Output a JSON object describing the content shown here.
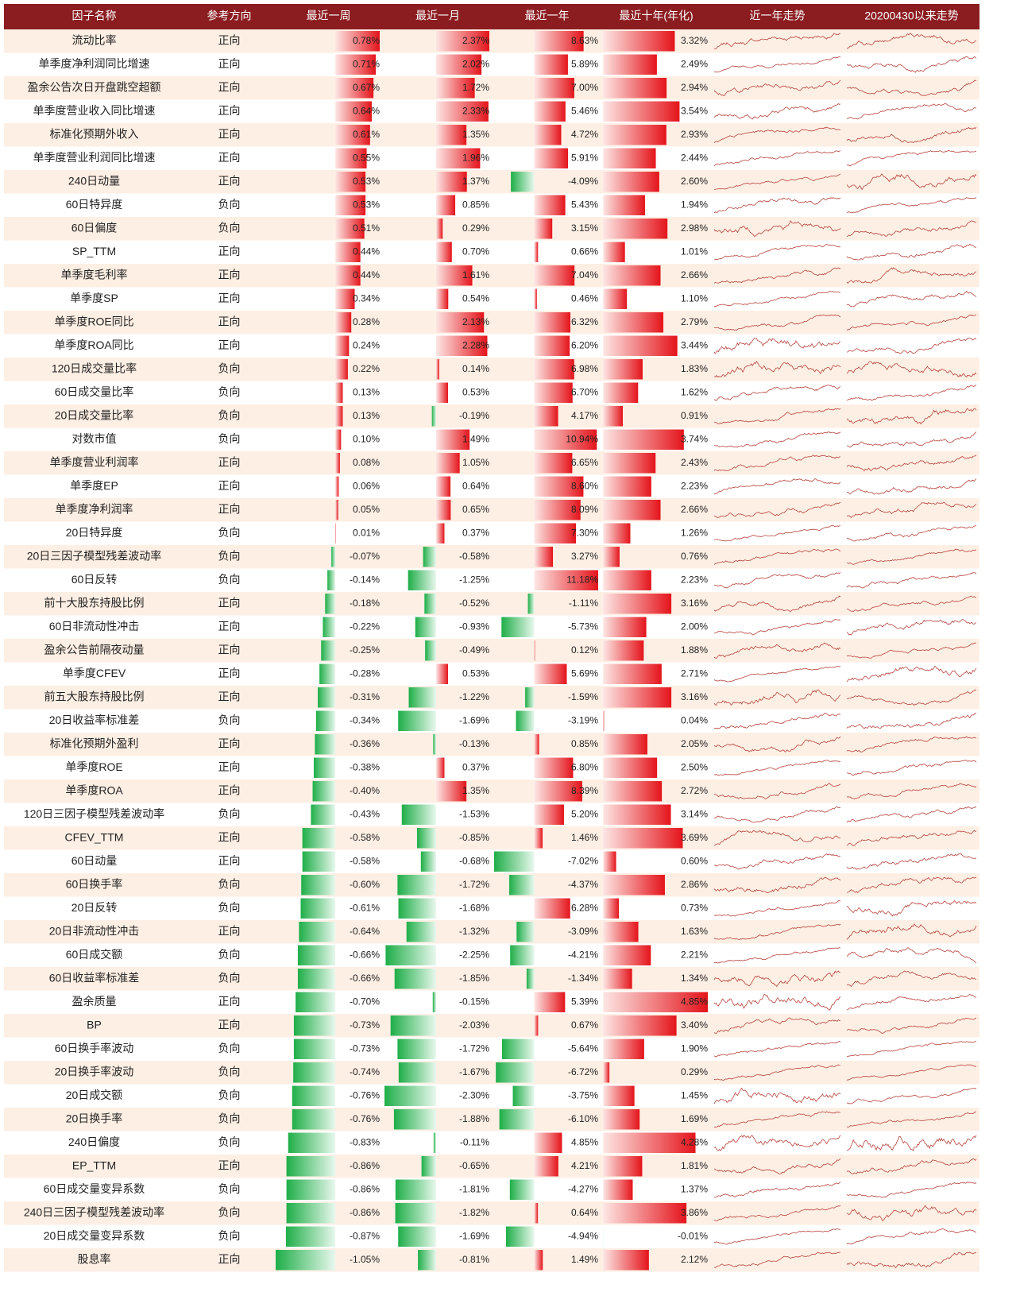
{
  "table": {
    "columns": [
      "因子名称",
      "参考方向",
      "最近一周",
      "最近一月",
      "最近一年",
      "最近十年(年化)",
      "近一年走势",
      "20200430以来走势"
    ],
    "rows": [
      {
        "factor": "流动比率",
        "direction": "正向",
        "values": [
          0.78,
          2.37,
          8.63,
          3.32
        ],
        "value_labels": [
          "0.78%",
          "2.37%",
          "8.63%",
          "3.32%"
        ]
      },
      {
        "factor": "单季度净利润同比增速",
        "direction": "正向",
        "values": [
          0.71,
          2.02,
          5.89,
          2.49
        ],
        "value_labels": [
          "0.71%",
          "2.02%",
          "5.89%",
          "2.49%"
        ]
      },
      {
        "factor": "盈余公告次日开盘跳空超额",
        "direction": "正向",
        "values": [
          0.67,
          1.72,
          7.0,
          2.94
        ],
        "value_labels": [
          "0.67%",
          "1.72%",
          "7.00%",
          "2.94%"
        ]
      },
      {
        "factor": "单季度营业收入同比增速",
        "direction": "正向",
        "values": [
          0.64,
          2.33,
          5.46,
          3.54
        ],
        "value_labels": [
          "0.64%",
          "2.33%",
          "5.46%",
          "3.54%"
        ]
      },
      {
        "factor": "标准化预期外收入",
        "direction": "正向",
        "values": [
          0.61,
          1.35,
          4.72,
          2.93
        ],
        "value_labels": [
          "0.61%",
          "1.35%",
          "4.72%",
          "2.93%"
        ]
      },
      {
        "factor": "单季度营业利润同比增速",
        "direction": "正向",
        "values": [
          0.55,
          1.96,
          5.91,
          2.44
        ],
        "value_labels": [
          "0.55%",
          "1.96%",
          "5.91%",
          "2.44%"
        ]
      },
      {
        "factor": "240日动量",
        "direction": "正向",
        "values": [
          0.53,
          1.37,
          -4.09,
          2.6
        ],
        "value_labels": [
          "0.53%",
          "1.37%",
          "-4.09%",
          "2.60%"
        ]
      },
      {
        "factor": "60日特异度",
        "direction": "负向",
        "values": [
          0.53,
          0.85,
          5.43,
          1.94
        ],
        "value_labels": [
          "0.53%",
          "0.85%",
          "5.43%",
          "1.94%"
        ]
      },
      {
        "factor": "60日偏度",
        "direction": "负向",
        "values": [
          0.51,
          0.29,
          3.15,
          2.98
        ],
        "value_labels": [
          "0.51%",
          "0.29%",
          "3.15%",
          "2.98%"
        ]
      },
      {
        "factor": "SP_TTM",
        "direction": "正向",
        "values": [
          0.44,
          0.7,
          0.66,
          1.01
        ],
        "value_labels": [
          "0.44%",
          "0.70%",
          "0.66%",
          "1.01%"
        ]
      },
      {
        "factor": "单季度毛利率",
        "direction": "正向",
        "values": [
          0.44,
          1.61,
          7.04,
          2.66
        ],
        "value_labels": [
          "0.44%",
          "1.61%",
          "7.04%",
          "2.66%"
        ]
      },
      {
        "factor": "单季度SP",
        "direction": "正向",
        "values": [
          0.34,
          0.54,
          0.46,
          1.1
        ],
        "value_labels": [
          "0.34%",
          "0.54%",
          "0.46%",
          "1.10%"
        ]
      },
      {
        "factor": "单季度ROE同比",
        "direction": "正向",
        "values": [
          0.28,
          2.13,
          6.32,
          2.79
        ],
        "value_labels": [
          "0.28%",
          "2.13%",
          "6.32%",
          "2.79%"
        ]
      },
      {
        "factor": "单季度ROA同比",
        "direction": "正向",
        "values": [
          0.24,
          2.28,
          6.2,
          3.44
        ],
        "value_labels": [
          "0.24%",
          "2.28%",
          "6.20%",
          "3.44%"
        ]
      },
      {
        "factor": "120日成交量比率",
        "direction": "负向",
        "values": [
          0.22,
          0.14,
          6.98,
          1.83
        ],
        "value_labels": [
          "0.22%",
          "0.14%",
          "6.98%",
          "1.83%"
        ]
      },
      {
        "factor": "60日成交量比率",
        "direction": "负向",
        "values": [
          0.13,
          0.53,
          6.7,
          1.62
        ],
        "value_labels": [
          "0.13%",
          "0.53%",
          "6.70%",
          "1.62%"
        ]
      },
      {
        "factor": "20日成交量比率",
        "direction": "负向",
        "values": [
          0.13,
          -0.19,
          4.17,
          0.91
        ],
        "value_labels": [
          "0.13%",
          "-0.19%",
          "4.17%",
          "0.91%"
        ]
      },
      {
        "factor": "对数市值",
        "direction": "负向",
        "values": [
          0.1,
          1.49,
          10.94,
          3.74
        ],
        "value_labels": [
          "0.10%",
          "1.49%",
          "10.94%",
          "3.74%"
        ]
      },
      {
        "factor": "单季度营业利润率",
        "direction": "正向",
        "values": [
          0.08,
          1.05,
          6.65,
          2.43
        ],
        "value_labels": [
          "0.08%",
          "1.05%",
          "6.65%",
          "2.43%"
        ]
      },
      {
        "factor": "单季度EP",
        "direction": "正向",
        "values": [
          0.06,
          0.64,
          8.6,
          2.23
        ],
        "value_labels": [
          "0.06%",
          "0.64%",
          "8.60%",
          "2.23%"
        ]
      },
      {
        "factor": "单季度净利润率",
        "direction": "正向",
        "values": [
          0.05,
          0.65,
          8.09,
          2.66
        ],
        "value_labels": [
          "0.05%",
          "0.65%",
          "8.09%",
          "2.66%"
        ]
      },
      {
        "factor": "20日特异度",
        "direction": "负向",
        "values": [
          0.01,
          0.37,
          7.3,
          1.26
        ],
        "value_labels": [
          "0.01%",
          "0.37%",
          "7.30%",
          "1.26%"
        ]
      },
      {
        "factor": "20日三因子模型残差波动率",
        "direction": "负向",
        "values": [
          -0.07,
          -0.58,
          3.27,
          0.76
        ],
        "value_labels": [
          "-0.07%",
          "-0.58%",
          "3.27%",
          "0.76%"
        ]
      },
      {
        "factor": "60日反转",
        "direction": "负向",
        "values": [
          -0.14,
          -1.25,
          11.18,
          2.23
        ],
        "value_labels": [
          "-0.14%",
          "-1.25%",
          "11.18%",
          "2.23%"
        ]
      },
      {
        "factor": "前十大股东持股比例",
        "direction": "正向",
        "values": [
          -0.18,
          -0.52,
          -1.11,
          3.16
        ],
        "value_labels": [
          "-0.18%",
          "-0.52%",
          "-1.11%",
          "3.16%"
        ]
      },
      {
        "factor": "60日非流动性冲击",
        "direction": "正向",
        "values": [
          -0.22,
          -0.93,
          -5.73,
          2.0
        ],
        "value_labels": [
          "-0.22%",
          "-0.93%",
          "-5.73%",
          "2.00%"
        ]
      },
      {
        "factor": "盈余公告前隔夜动量",
        "direction": "正向",
        "values": [
          -0.25,
          -0.49,
          0.12,
          1.88
        ],
        "value_labels": [
          "-0.25%",
          "-0.49%",
          "0.12%",
          "1.88%"
        ]
      },
      {
        "factor": "单季度CFEV",
        "direction": "正向",
        "values": [
          -0.28,
          0.53,
          5.69,
          2.71
        ],
        "value_labels": [
          "-0.28%",
          "0.53%",
          "5.69%",
          "2.71%"
        ]
      },
      {
        "factor": "前五大股东持股比例",
        "direction": "正向",
        "values": [
          -0.31,
          -1.22,
          -1.59,
          3.16
        ],
        "value_labels": [
          "-0.31%",
          "-1.22%",
          "-1.59%",
          "3.16%"
        ]
      },
      {
        "factor": "20日收益率标准差",
        "direction": "负向",
        "values": [
          -0.34,
          -1.69,
          -3.19,
          0.04
        ],
        "value_labels": [
          "-0.34%",
          "-1.69%",
          "-3.19%",
          "0.04%"
        ]
      },
      {
        "factor": "标准化预期外盈利",
        "direction": "正向",
        "values": [
          -0.36,
          -0.13,
          0.85,
          2.05
        ],
        "value_labels": [
          "-0.36%",
          "-0.13%",
          "0.85%",
          "2.05%"
        ]
      },
      {
        "factor": "单季度ROE",
        "direction": "正向",
        "values": [
          -0.38,
          0.37,
          6.8,
          2.5
        ],
        "value_labels": [
          "-0.38%",
          "0.37%",
          "6.80%",
          "2.50%"
        ]
      },
      {
        "factor": "单季度ROA",
        "direction": "正向",
        "values": [
          -0.4,
          1.35,
          8.39,
          2.72
        ],
        "value_labels": [
          "-0.40%",
          "1.35%",
          "8.39%",
          "2.72%"
        ]
      },
      {
        "factor": "120日三因子模型残差波动率",
        "direction": "负向",
        "values": [
          -0.43,
          -1.53,
          5.2,
          3.14
        ],
        "value_labels": [
          "-0.43%",
          "-1.53%",
          "5.20%",
          "3.14%"
        ]
      },
      {
        "factor": "CFEV_TTM",
        "direction": "正向",
        "values": [
          -0.58,
          -0.85,
          1.46,
          3.69
        ],
        "value_labels": [
          "-0.58%",
          "-0.85%",
          "1.46%",
          "3.69%"
        ]
      },
      {
        "factor": "60日动量",
        "direction": "正向",
        "values": [
          -0.58,
          -0.68,
          -7.02,
          0.6
        ],
        "value_labels": [
          "-0.58%",
          "-0.68%",
          "-7.02%",
          "0.60%"
        ]
      },
      {
        "factor": "60日换手率",
        "direction": "负向",
        "values": [
          -0.6,
          -1.72,
          -4.37,
          2.86
        ],
        "value_labels": [
          "-0.60%",
          "-1.72%",
          "-4.37%",
          "2.86%"
        ]
      },
      {
        "factor": "20日反转",
        "direction": "负向",
        "values": [
          -0.61,
          -1.68,
          6.28,
          0.73
        ],
        "value_labels": [
          "-0.61%",
          "-1.68%",
          "6.28%",
          "0.73%"
        ]
      },
      {
        "factor": "20日非流动性冲击",
        "direction": "正向",
        "values": [
          -0.64,
          -1.32,
          -3.09,
          1.63
        ],
        "value_labels": [
          "-0.64%",
          "-1.32%",
          "-3.09%",
          "1.63%"
        ]
      },
      {
        "factor": "60日成交额",
        "direction": "负向",
        "values": [
          -0.66,
          -2.25,
          -4.21,
          2.21
        ],
        "value_labels": [
          "-0.66%",
          "-2.25%",
          "-4.21%",
          "2.21%"
        ]
      },
      {
        "factor": "60日收益率标准差",
        "direction": "负向",
        "values": [
          -0.66,
          -1.85,
          -1.34,
          1.34
        ],
        "value_labels": [
          "-0.66%",
          "-1.85%",
          "-1.34%",
          "1.34%"
        ]
      },
      {
        "factor": "盈余质量",
        "direction": "正向",
        "values": [
          -0.7,
          -0.15,
          5.39,
          4.85
        ],
        "value_labels": [
          "-0.70%",
          "-0.15%",
          "5.39%",
          "4.85%"
        ]
      },
      {
        "factor": "BP",
        "direction": "正向",
        "values": [
          -0.73,
          -2.03,
          0.67,
          3.4
        ],
        "value_labels": [
          "-0.73%",
          "-2.03%",
          "0.67%",
          "3.40%"
        ]
      },
      {
        "factor": "60日换手率波动",
        "direction": "负向",
        "values": [
          -0.73,
          -1.72,
          -5.64,
          1.9
        ],
        "value_labels": [
          "-0.73%",
          "-1.72%",
          "-5.64%",
          "1.90%"
        ]
      },
      {
        "factor": "20日换手率波动",
        "direction": "负向",
        "values": [
          -0.74,
          -1.67,
          -6.72,
          0.29
        ],
        "value_labels": [
          "-0.74%",
          "-1.67%",
          "-6.72%",
          "0.29%"
        ]
      },
      {
        "factor": "20日成交额",
        "direction": "负向",
        "values": [
          -0.76,
          -2.3,
          -3.75,
          1.45
        ],
        "value_labels": [
          "-0.76%",
          "-2.30%",
          "-3.75%",
          "1.45%"
        ]
      },
      {
        "factor": "20日换手率",
        "direction": "负向",
        "values": [
          -0.76,
          -1.88,
          -6.1,
          1.69
        ],
        "value_labels": [
          "-0.76%",
          "-1.88%",
          "-6.10%",
          "1.69%"
        ]
      },
      {
        "factor": "240日偏度",
        "direction": "负向",
        "values": [
          -0.83,
          -0.11,
          4.85,
          4.28
        ],
        "value_labels": [
          "-0.83%",
          "-0.11%",
          "4.85%",
          "4.28%"
        ]
      },
      {
        "factor": "EP_TTM",
        "direction": "正向",
        "values": [
          -0.86,
          -0.65,
          4.21,
          1.81
        ],
        "value_labels": [
          "-0.86%",
          "-0.65%",
          "4.21%",
          "1.81%"
        ]
      },
      {
        "factor": "60日成交量变异系数",
        "direction": "负向",
        "values": [
          -0.86,
          -1.81,
          -4.27,
          1.37
        ],
        "value_labels": [
          "-0.86%",
          "-1.81%",
          "-4.27%",
          "1.37%"
        ]
      },
      {
        "factor": "240日三因子模型残差波动率",
        "direction": "负向",
        "values": [
          -0.86,
          -1.82,
          0.64,
          3.86
        ],
        "value_labels": [
          "-0.86%",
          "-1.82%",
          "0.64%",
          "3.86%"
        ]
      },
      {
        "factor": "20日成交量变异系数",
        "direction": "负向",
        "values": [
          -0.87,
          -1.69,
          -4.94,
          -0.01
        ],
        "value_labels": [
          "-0.87%",
          "-1.69%",
          "-4.94%",
          "-0.01%"
        ]
      },
      {
        "factor": "股息率",
        "direction": "正向",
        "values": [
          -1.05,
          -0.81,
          1.49,
          2.12
        ],
        "value_labels": [
          "-1.05%",
          "-0.81%",
          "1.49%",
          "2.12%"
        ]
      }
    ]
  }
}
